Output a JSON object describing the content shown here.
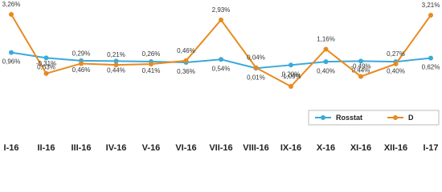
{
  "chart_data": {
    "type": "line",
    "categories": [
      "I-16",
      "II-16",
      "III-16",
      "IV-16",
      "V-16",
      "VI-16",
      "VII-16",
      "VIII-16",
      "IX-16",
      "X-16",
      "XI-16",
      "XII-16",
      "I-17"
    ],
    "series": [
      {
        "name": "Rosstat",
        "color": "#3ba9d9",
        "values": [
          0.96,
          0.63,
          0.46,
          0.44,
          0.41,
          0.36,
          0.54,
          0.01,
          0.2,
          0.4,
          0.44,
          0.4,
          0.62
        ],
        "value_labels": [
          "0,96%",
          "0,63%",
          "0,46%",
          "0,44%",
          "0,41%",
          "0,36%",
          "0,54%",
          "0,01%",
          "0,20%",
          "0,40%",
          "0,44%",
          "0,40%",
          "0,62%"
        ]
      },
      {
        "name": "D",
        "color": "#e88a1f",
        "values": [
          3.26,
          -0.31,
          0.29,
          0.21,
          0.26,
          0.46,
          2.93,
          0.04,
          -1.09,
          1.16,
          -0.49,
          0.27,
          3.21
        ],
        "value_labels": [
          "3,26%",
          "-0,31%",
          "0,29%",
          "0,21%",
          "0,26%",
          "0,46%",
          "2,93%",
          "0,04%",
          "-1,09%",
          "1,16%",
          "-0,49%",
          "0,27%",
          "3,21%"
        ]
      }
    ],
    "legend": "lower right"
  }
}
